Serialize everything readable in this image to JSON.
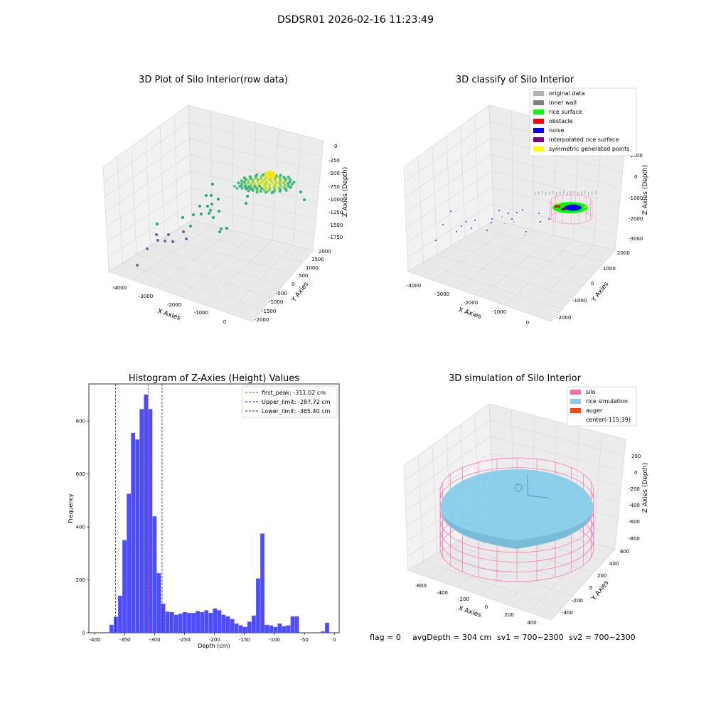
{
  "figure_title": "DSDSR01 2026-02-16 11:23:49",
  "status_line": {
    "flag": "flag = 0",
    "avg_depth": "avgDepth = 304 cm",
    "sv1": "sv1 = 700~2300",
    "sv2": "sv2 = 700~2300"
  },
  "colors": {
    "hist_bar": "#4d4dff",
    "peak_line": "#e03030",
    "limit_line": "#1a1acc",
    "silo": "#ff69b4",
    "rice_simulation": "#87cdea",
    "auger": "#ff4500",
    "original_data": "#b3b3b3",
    "inner_wall": "#808080",
    "rice_surface": "#00ff00",
    "obstacle": "#ff0000",
    "noise": "#0000ff",
    "interpolated_rice_surface": "#800080",
    "symmetric_generated_points": "#ffff00"
  },
  "chart_data": [
    {
      "type": "scatter",
      "title": "3D Plot of Silo Interior(row data)",
      "xlabel": "X Axies",
      "ylabel": "Y Axies",
      "zlabel": "Z Axies (Depth)",
      "x_ticks": [
        "-4000",
        "-3000",
        "-2000",
        "-1000",
        "0"
      ],
      "y_ticks": [
        "-2000",
        "-1500",
        "-1000",
        "-500",
        "0",
        "500",
        "1000",
        "1500",
        "2000"
      ],
      "z_ticks": [
        "0",
        "-250",
        "-500",
        "-750",
        "-1000",
        "-1250",
        "-1500",
        "-1750"
      ],
      "xlim": [
        -4300,
        700
      ],
      "ylim": [
        -2200,
        2200
      ],
      "zlim": [
        -1900,
        100
      ]
    },
    {
      "type": "scatter",
      "title": "3D classify of Silo Interior",
      "xlabel": "X Axies",
      "ylabel": "Y Axies",
      "zlabel": "Z Axies (Depth)",
      "x_ticks": [
        "-4000",
        "-3000",
        "-2000",
        "-1000",
        "0"
      ],
      "y_ticks": [
        "-2000",
        "-1000",
        "0",
        "1000",
        "2000"
      ],
      "z_ticks": [
        "1000",
        "0",
        "-1000",
        "-2000",
        "-3000"
      ],
      "legend": [
        "original data",
        "inner wall",
        "rice surface",
        "obstacle",
        "noise",
        "interpolated rice surface",
        "symmetric generated points"
      ],
      "legend_position": "top-right"
    },
    {
      "type": "bar",
      "title": "Histogram of Z-Axies (Height) Values",
      "xlabel": "Depth (cm)",
      "ylabel": "Frequency",
      "xlim": [
        -410,
        8
      ],
      "ylim": [
        0,
        940
      ],
      "x_ticks": [
        -400,
        -350,
        -300,
        -250,
        -200,
        -150,
        -100,
        -50,
        0
      ],
      "y_ticks": [
        0,
        200,
        400,
        600,
        800
      ],
      "bin_start": -390,
      "bin_width": 7.2,
      "values": [
        2,
        2,
        30,
        60,
        140,
        350,
        525,
        755,
        730,
        845,
        900,
        845,
        440,
        225,
        110,
        80,
        78,
        68,
        72,
        78,
        75,
        75,
        82,
        78,
        85,
        75,
        92,
        85,
        68,
        62,
        52,
        35,
        28,
        22,
        42,
        65,
        205,
        375,
        30,
        28,
        22,
        35,
        25,
        28,
        62,
        62,
        0,
        0,
        0,
        0,
        0,
        5,
        38
      ],
      "vlines": [
        {
          "x": -311.02,
          "style": "peak",
          "label": "first_peak: -311.02 cm"
        },
        {
          "x": -287.72,
          "style": "limit",
          "label": "Upper_limit: -287.72 cm"
        },
        {
          "x": -365.4,
          "style": "limit",
          "label": "Lower_limit: -365.40 cm"
        }
      ],
      "legend_position": "top-right"
    },
    {
      "type": "scatter",
      "title": "3D simulation of Silo Interior",
      "xlabel": "X Axies",
      "ylabel": "Y Axies",
      "zlabel": "Z Axies (Depth)",
      "x_ticks": [
        "-600",
        "-400",
        "-200",
        "0",
        "200",
        "400"
      ],
      "y_ticks": [
        "-400",
        "-200",
        "0",
        "200",
        "400",
        "600"
      ],
      "z_ticks": [
        "200",
        "0",
        "-200",
        "-400",
        "-600",
        "-800"
      ],
      "legend": [
        "silo",
        "rice simulation",
        "auger",
        "center(-115,39)"
      ],
      "legend_position": "top-right"
    }
  ]
}
